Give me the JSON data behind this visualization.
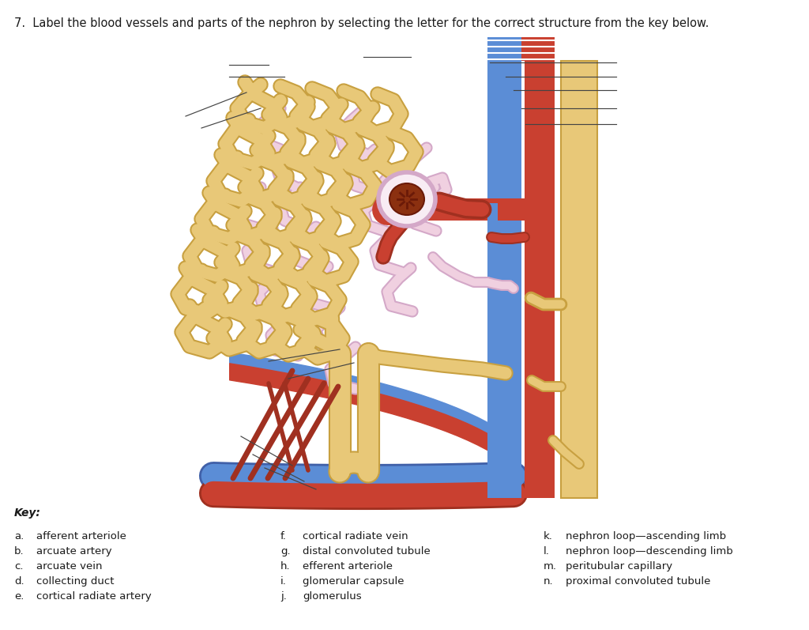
{
  "title": "7.  Label the blood vessels and parts of the nephron by selecting the letter for the correct structure from the key below.",
  "key_title": "Key:",
  "key_items_col1": [
    [
      "a.",
      "afferent arteriole"
    ],
    [
      "b.",
      "arcuate artery"
    ],
    [
      "c.",
      "arcuate vein"
    ],
    [
      "d.",
      "collecting duct"
    ],
    [
      "e.",
      "cortical radiate artery"
    ]
  ],
  "key_items_col2": [
    [
      "f.",
      "cortical radiate vein"
    ],
    [
      "g.",
      "distal convoluted tubule"
    ],
    [
      "h.",
      "efferent arteriole"
    ],
    [
      "i.",
      "glomerular capsule"
    ],
    [
      "j.",
      "glomerulus"
    ]
  ],
  "key_items_col3": [
    [
      "k.",
      "nephron loop—ascending limb"
    ],
    [
      "l.",
      "nephron loop—descending limb"
    ],
    [
      "m.",
      "peritubular capillary"
    ],
    [
      "n.",
      "proximal convoluted tubule"
    ]
  ],
  "bg_color": "#ffffff",
  "text_color": "#1a1a1a",
  "blue": "#5B8DD6",
  "red": "#C94030",
  "tan": "#E8C878",
  "tan_dark": "#C8A040",
  "pink_outer": "#D4A8C8",
  "pink_inner": "#F0D0E0",
  "glom_color": "#8B3010",
  "label_line_color": "#444444"
}
